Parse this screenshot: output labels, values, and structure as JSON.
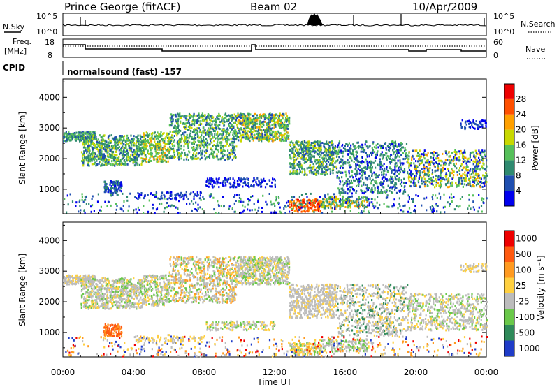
{
  "header": {
    "site": "Prince George (fitACF)",
    "beam": "Beam 02",
    "date": "10/Apr/2009"
  },
  "top_panels": {
    "nsky_label": "N.Sky",
    "nsky_ticks": [
      "10^5",
      "10^0"
    ],
    "nsearch_label": "N.Search",
    "nsearch_ticks": [
      "10^5",
      "10^0"
    ],
    "freq_label": "Freq.",
    "freq_unit": "[MHz]",
    "freq_ticks": [
      "18",
      "8"
    ],
    "nave_label": "Nave",
    "nave_ticks": [
      "60",
      "0"
    ],
    "cpid_label": "CPID",
    "cpid_text": "normalsound (fast) -157"
  },
  "chart_data": [
    {
      "type": "heatmap",
      "name": "power",
      "ylabel": "Slant Range [km]",
      "yticks": [
        "4000",
        "3000",
        "2000",
        "1000"
      ],
      "ytick_values": [
        4000,
        3000,
        2000,
        1000
      ],
      "ylim": [
        200,
        4600
      ],
      "xlim": [
        0,
        24
      ],
      "colorbar_label": "Power [dB]",
      "colorbar_ticks": [
        "28",
        "24",
        "20",
        "16",
        "12",
        "8",
        "4"
      ],
      "colorbar_colors": [
        "#0000ee",
        "#1f4fb0",
        "#2f8a70",
        "#56c05a",
        "#c8d800",
        "#ffa000",
        "#ff5000",
        "#ee0000"
      ]
    },
    {
      "type": "heatmap",
      "name": "velocity",
      "ylabel": "Slant Range [km]",
      "yticks": [
        "4000",
        "3000",
        "2000",
        "1000"
      ],
      "ytick_values": [
        4000,
        3000,
        2000,
        1000
      ],
      "ylim": [
        200,
        4600
      ],
      "xlim": [
        0,
        24
      ],
      "xlabel": "Time UT",
      "xticks": [
        "00:00",
        "04:00",
        "08:00",
        "12:00",
        "16:00",
        "20:00",
        "00:00"
      ],
      "xtick_values": [
        0,
        4,
        8,
        12,
        16,
        20,
        24
      ],
      "colorbar_label": "Velocity [m s⁻¹]",
      "colorbar_ticks": [
        "1000",
        "500",
        "100",
        "25",
        "-25",
        "-100",
        "-500",
        "-1000"
      ],
      "colorbar_colors": [
        "#1f3cc8",
        "#2f8a5a",
        "#6ac84a",
        "#bcbcbc",
        "#ffd040",
        "#ff9a20",
        "#ff5a10",
        "#ee0000"
      ]
    }
  ]
}
